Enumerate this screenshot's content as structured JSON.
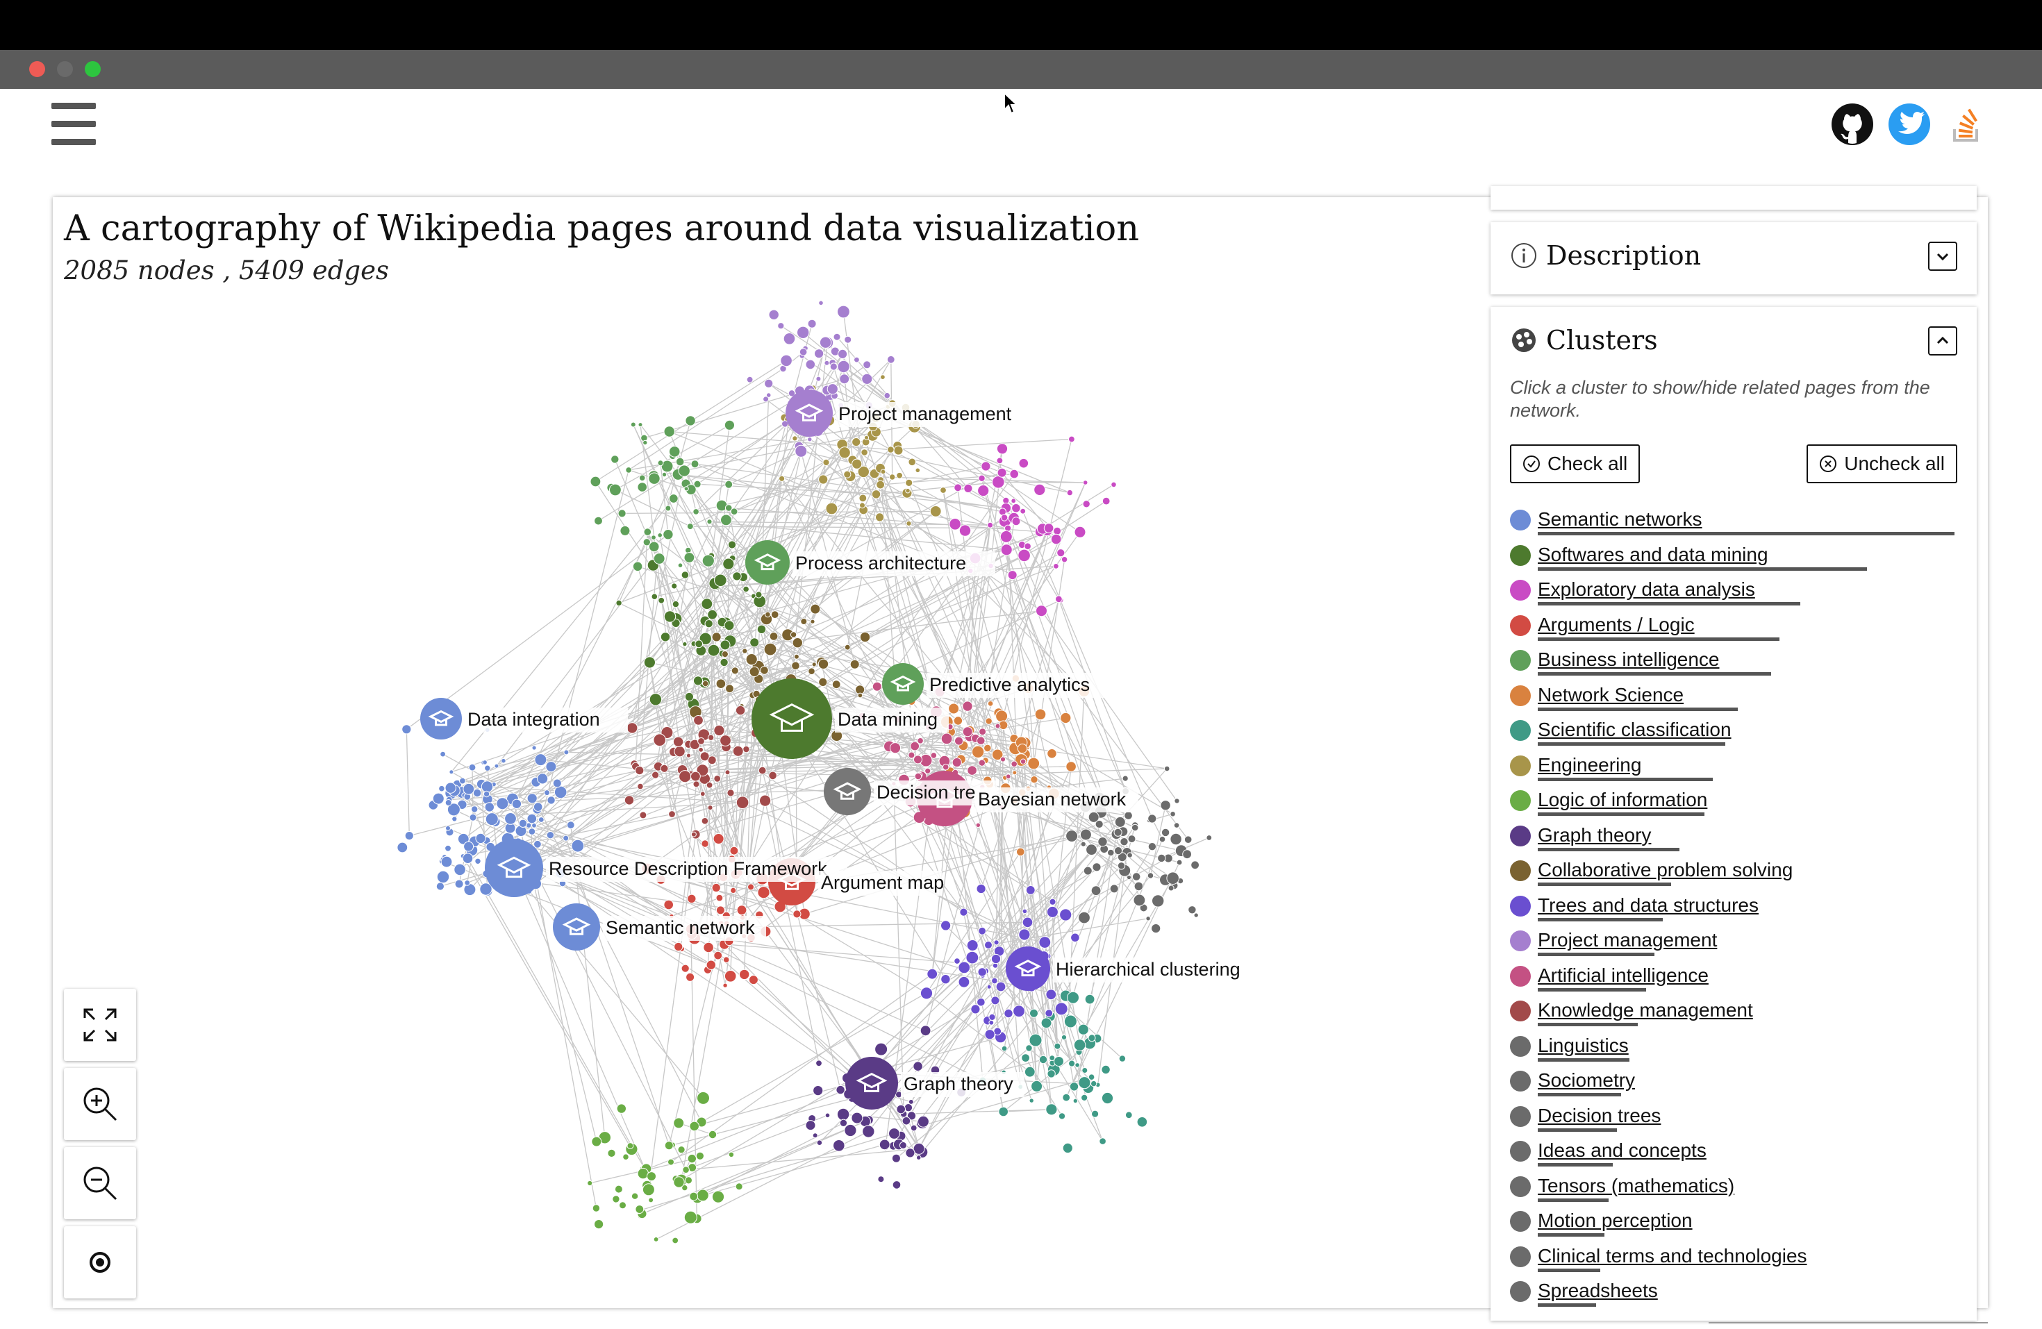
{
  "header": {
    "menu_icon": "hamburger-icon",
    "links": [
      {
        "icon": "github-icon"
      },
      {
        "icon": "twitter-icon",
        "color": "#2a9df2"
      },
      {
        "icon": "stackoverflow-icon",
        "color": "#f48024"
      }
    ]
  },
  "main": {
    "title": "A cartography of Wikipedia pages around data visualization",
    "subtitle": "2085 nodes , 5409 edges"
  },
  "graph_labels": [
    {
      "text": "Project management",
      "color": "#a57fcf",
      "icon": "graduation-cap-icon"
    },
    {
      "text": "Process architecture",
      "color": "#5fa05a",
      "icon": "graduation-cap-icon"
    },
    {
      "text": "Predictive analytics",
      "color": "#5fa05a",
      "icon": "graduation-cap-icon"
    },
    {
      "text": "Data mining",
      "color": "#4d7a2e",
      "icon": "graduation-cap-icon"
    },
    {
      "text": "Data integration",
      "color": "#6d8cd6",
      "icon": "cube-icon"
    },
    {
      "text": "Decision tre",
      "color": "#777777",
      "icon": "cloud-icon"
    },
    {
      "text": "Bayesian network",
      "color": "#c45183",
      "icon": "cloud-icon"
    },
    {
      "text": "Resource Description Framework",
      "color": "#6d8cd6",
      "icon": "gear-icon"
    },
    {
      "text": "Argument map",
      "color": "#d24b43",
      "icon": "factory-icon"
    },
    {
      "text": "Semantic network",
      "color": "#6d8cd6",
      "icon": "cloud-icon"
    },
    {
      "text": "Hierarchical clustering",
      "color": "#6a4fd0",
      "icon": "cube-icon"
    },
    {
      "text": "Graph theory",
      "color": "#5a3b86",
      "icon": "graduation-cap-icon"
    }
  ],
  "controls": [
    {
      "icon": "fullscreen-icon"
    },
    {
      "icon": "zoom-in-icon"
    },
    {
      "icon": "zoom-out-icon"
    },
    {
      "icon": "recenter-icon"
    }
  ],
  "panels": {
    "description": {
      "title": "Description",
      "icon": "info-icon",
      "toggle_icon": "chevron-down-icon"
    },
    "clusters": {
      "title": "Clusters",
      "icon": "palette-icon",
      "toggle_icon": "chevron-up-icon",
      "hint": "Click a cluster to show/hide related pages from the network.",
      "check_all": "Check all",
      "uncheck_all": "Uncheck all",
      "items": [
        {
          "label": "Semantic networks",
          "color": "#6d8cd6",
          "share": 1.0
        },
        {
          "label": "Softwares and data mining",
          "color": "#4d7a2e",
          "share": 0.79
        },
        {
          "label": "Exploratory data analysis",
          "color": "#c94bc4",
          "share": 0.63
        },
        {
          "label": "Arguments / Logic",
          "color": "#d24b43",
          "share": 0.58
        },
        {
          "label": "Business intelligence",
          "color": "#5fa05a",
          "share": 0.56
        },
        {
          "label": "Network Science",
          "color": "#d9823f",
          "share": 0.48
        },
        {
          "label": "Scientific classification",
          "color": "#3f9a86",
          "share": 0.45
        },
        {
          "label": "Engineering",
          "color": "#a8954a",
          "share": 0.42
        },
        {
          "label": "Logic of information",
          "color": "#6aad45",
          "share": 0.4
        },
        {
          "label": "Graph theory",
          "color": "#5a3b86",
          "share": 0.34
        },
        {
          "label": "Collaborative problem solving",
          "color": "#7a6230",
          "share": 0.32
        },
        {
          "label": "Trees and data structures",
          "color": "#6a4fd0",
          "share": 0.3
        },
        {
          "label": "Project management",
          "color": "#a57fcf",
          "share": 0.28
        },
        {
          "label": "Artificial intelligence",
          "color": "#c45183",
          "share": 0.26
        },
        {
          "label": "Knowledge management",
          "color": "#a24a4a",
          "share": 0.24
        },
        {
          "label": "Linguistics",
          "color": "#6b6b6b",
          "share": 0.22
        },
        {
          "label": "Sociometry",
          "color": "#6b6b6b",
          "share": 0.2
        },
        {
          "label": "Decision trees",
          "color": "#6b6b6b",
          "share": 0.19
        },
        {
          "label": "Ideas and concepts",
          "color": "#6b6b6b",
          "share": 0.18
        },
        {
          "label": "Tensors (mathematics)",
          "color": "#6b6b6b",
          "share": 0.17
        },
        {
          "label": "Motion perception",
          "color": "#6b6b6b",
          "share": 0.16
        },
        {
          "label": "Clinical terms and technologies",
          "color": "#6b6b6b",
          "share": 0.15
        },
        {
          "label": "Spreadsheets",
          "color": "#6b6b6b",
          "share": 0.14
        }
      ]
    }
  }
}
